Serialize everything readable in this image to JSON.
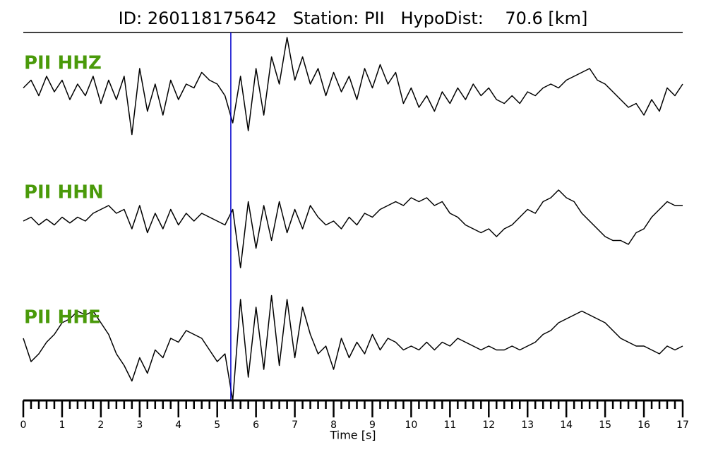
{
  "chart_data": {
    "type": "line",
    "title": "ID: 260118175642   Station: PII   HypoDist:    70.6 [km]",
    "xlabel": "Time [s]",
    "xlim": [
      0,
      17
    ],
    "xticks": [
      0,
      1,
      2,
      3,
      4,
      5,
      6,
      7,
      8,
      9,
      10,
      11,
      12,
      13,
      14,
      15,
      16,
      17
    ],
    "pick_time": 5.35,
    "pick_color": "#0000cc",
    "label_color": "#4a9a0a",
    "x": [
      0,
      0.2,
      0.4,
      0.6,
      0.8,
      1,
      1.2,
      1.4,
      1.6,
      1.8,
      2,
      2.2,
      2.4,
      2.6,
      2.8,
      3,
      3.2,
      3.4,
      3.6,
      3.8,
      4,
      4.2,
      4.4,
      4.6,
      4.8,
      5,
      5.2,
      5.4,
      5.6,
      5.8,
      6,
      6.2,
      6.4,
      6.6,
      6.8,
      7,
      7.2,
      7.4,
      7.6,
      7.8,
      8,
      8.2,
      8.4,
      8.6,
      8.8,
      9,
      9.2,
      9.4,
      9.6,
      9.8,
      10,
      10.2,
      10.4,
      10.6,
      10.8,
      11,
      11.2,
      11.4,
      11.6,
      11.8,
      12,
      12.2,
      12.4,
      12.6,
      12.8,
      13,
      13.2,
      13.4,
      13.6,
      13.8,
      14,
      14.2,
      14.4,
      14.6,
      14.8,
      15,
      15.2,
      15.4,
      15.6,
      15.8,
      16,
      16.2,
      16.4,
      16.6,
      16.8,
      17
    ],
    "series": [
      {
        "name": "PII HHZ",
        "color": "#000000",
        "values": [
          0.1,
          0.3,
          -0.1,
          0.4,
          0.0,
          0.3,
          -0.2,
          0.2,
          -0.1,
          0.4,
          -0.3,
          0.3,
          -0.2,
          0.4,
          -1.1,
          0.6,
          -0.5,
          0.2,
          -0.6,
          0.3,
          -0.2,
          0.2,
          0.1,
          0.5,
          0.3,
          0.2,
          -0.1,
          -0.8,
          0.4,
          -1.0,
          0.6,
          -0.6,
          0.9,
          0.2,
          1.4,
          0.3,
          0.9,
          0.2,
          0.6,
          -0.1,
          0.5,
          0.0,
          0.4,
          -0.2,
          0.6,
          0.1,
          0.7,
          0.2,
          0.5,
          -0.3,
          0.1,
          -0.4,
          -0.1,
          -0.5,
          0.0,
          -0.3,
          0.1,
          -0.2,
          0.2,
          -0.1,
          0.1,
          -0.2,
          -0.3,
          -0.1,
          -0.3,
          0.0,
          -0.1,
          0.1,
          0.2,
          0.1,
          0.3,
          0.4,
          0.5,
          0.6,
          0.3,
          0.2,
          0.0,
          -0.2,
          -0.4,
          -0.3,
          -0.6,
          -0.2,
          -0.5,
          0.1,
          -0.1,
          0.2
        ]
      },
      {
        "name": "PII HHN",
        "color": "#000000",
        "values": [
          0.0,
          0.1,
          -0.1,
          0.05,
          -0.1,
          0.1,
          -0.05,
          0.1,
          0.0,
          0.2,
          0.3,
          0.4,
          0.2,
          0.3,
          -0.2,
          0.4,
          -0.3,
          0.2,
          -0.2,
          0.3,
          -0.1,
          0.2,
          0.0,
          0.2,
          0.1,
          0.0,
          -0.1,
          0.3,
          -1.2,
          0.5,
          -0.7,
          0.4,
          -0.5,
          0.5,
          -0.3,
          0.3,
          -0.2,
          0.4,
          0.1,
          -0.1,
          0.0,
          -0.2,
          0.1,
          -0.1,
          0.2,
          0.1,
          0.3,
          0.4,
          0.5,
          0.4,
          0.6,
          0.5,
          0.6,
          0.4,
          0.5,
          0.2,
          0.1,
          -0.1,
          -0.2,
          -0.3,
          -0.2,
          -0.4,
          -0.2,
          -0.1,
          0.1,
          0.3,
          0.2,
          0.5,
          0.6,
          0.8,
          0.6,
          0.5,
          0.2,
          0.0,
          -0.2,
          -0.4,
          -0.5,
          -0.5,
          -0.6,
          -0.3,
          -0.2,
          0.1,
          0.3,
          0.5,
          0.4,
          0.4
        ]
      },
      {
        "name": "PII HHE",
        "color": "#000000",
        "values": [
          0.2,
          -0.4,
          -0.2,
          0.1,
          0.3,
          0.6,
          0.7,
          0.9,
          0.8,
          0.9,
          0.6,
          0.3,
          -0.2,
          -0.5,
          -0.9,
          -0.3,
          -0.7,
          -0.1,
          -0.3,
          0.2,
          0.1,
          0.4,
          0.3,
          0.2,
          -0.1,
          -0.4,
          -0.2,
          -1.4,
          1.2,
          -0.8,
          1.0,
          -0.6,
          1.3,
          -0.5,
          1.2,
          -0.3,
          1.0,
          0.3,
          -0.2,
          0.0,
          -0.6,
          0.2,
          -0.3,
          0.1,
          -0.2,
          0.3,
          -0.1,
          0.2,
          0.1,
          -0.1,
          0.0,
          -0.1,
          0.1,
          -0.1,
          0.1,
          0.0,
          0.2,
          0.1,
          0.0,
          -0.1,
          0.0,
          -0.1,
          -0.1,
          0.0,
          -0.1,
          0.0,
          0.1,
          0.3,
          0.4,
          0.6,
          0.7,
          0.8,
          0.9,
          0.8,
          0.7,
          0.6,
          0.4,
          0.2,
          0.1,
          0.0,
          0.0,
          -0.1,
          -0.2,
          0.0,
          -0.1,
          0.0
        ]
      }
    ]
  }
}
